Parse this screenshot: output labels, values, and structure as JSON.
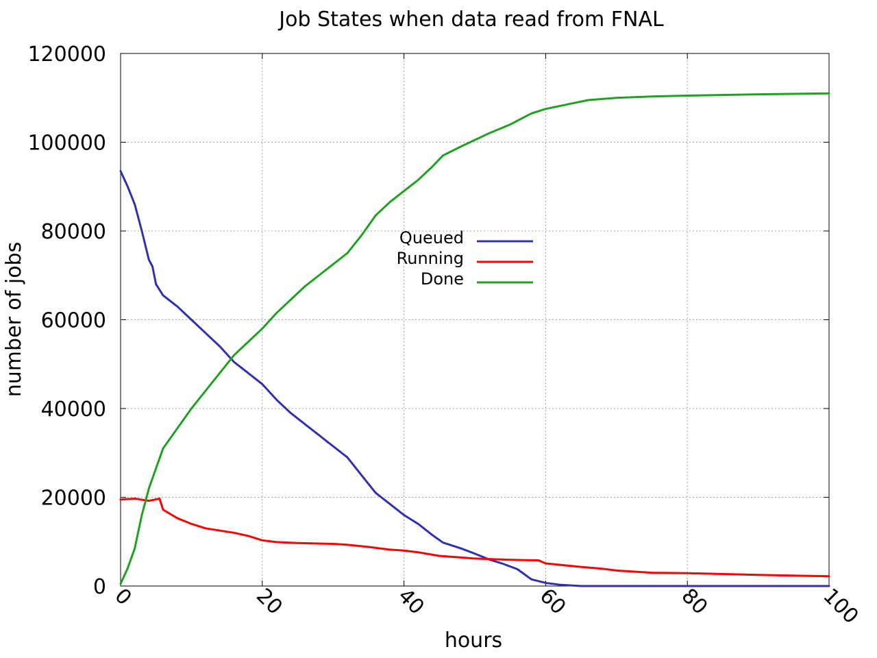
{
  "chart_data": {
    "type": "line",
    "title": "Job States when data read from FNAL",
    "xlabel": "hours",
    "ylabel": "number of jobs",
    "xlim": [
      0,
      100
    ],
    "ylim": [
      0,
      120000
    ],
    "xticks": [
      0,
      20,
      40,
      60,
      80,
      100
    ],
    "yticks": [
      0,
      20000,
      40000,
      60000,
      80000,
      100000,
      120000
    ],
    "grid": true,
    "legend_position": "center",
    "series": [
      {
        "name": "Queued",
        "color": "#2f2faf",
        "x": [
          0,
          1,
          2,
          3,
          4,
          4.5,
          5,
          6,
          8,
          10,
          12,
          14,
          16,
          18,
          20,
          22,
          24,
          26,
          28,
          30,
          32,
          34,
          36,
          38,
          40,
          42,
          44,
          45.5,
          48,
          50,
          52,
          54,
          56,
          58,
          60,
          62,
          65,
          70,
          80,
          90,
          100
        ],
        "y": [
          93500,
          90000,
          86000,
          80000,
          73500,
          72000,
          68000,
          65500,
          63000,
          60000,
          57000,
          54000,
          50500,
          48000,
          45500,
          42000,
          39000,
          36500,
          34000,
          31500,
          29000,
          25000,
          21000,
          18500,
          16000,
          14000,
          11500,
          9800,
          8500,
          7300,
          6000,
          5000,
          3800,
          1500,
          700,
          300,
          0,
          0,
          0,
          0,
          0
        ]
      },
      {
        "name": "Running",
        "color": "#ff0000",
        "x": [
          0,
          2,
          4,
          5.5,
          6,
          8,
          10,
          12,
          14,
          16,
          18,
          20,
          22,
          25,
          30,
          32,
          35,
          38,
          40,
          42,
          45,
          50,
          55,
          59,
          60,
          65,
          68,
          70,
          75,
          80,
          90,
          100
        ],
        "y": [
          19500,
          19700,
          19200,
          19700,
          17200,
          15300,
          14000,
          13000,
          12500,
          12000,
          11300,
          10300,
          9900,
          9700,
          9500,
          9300,
          8800,
          8200,
          8000,
          7600,
          6800,
          6200,
          5900,
          5800,
          5100,
          4300,
          3900,
          3500,
          3000,
          2900,
          2500,
          2200
        ]
      },
      {
        "name": "Done",
        "color": "#1fa01f",
        "x": [
          0,
          1,
          2,
          3,
          4,
          5,
          6,
          8,
          10,
          12,
          14,
          16,
          18,
          20,
          22,
          24,
          26,
          28,
          30,
          32,
          34,
          36,
          38,
          40,
          42,
          44,
          45.5,
          48,
          50,
          52,
          55,
          58,
          60,
          63,
          66,
          70,
          75,
          80,
          90,
          100
        ],
        "y": [
          500,
          4000,
          8500,
          16000,
          22000,
          26500,
          31000,
          35500,
          40000,
          44000,
          48000,
          52000,
          55000,
          58000,
          61500,
          64500,
          67500,
          70000,
          72500,
          75000,
          79000,
          83500,
          86500,
          89000,
          91500,
          94500,
          97000,
          99000,
          100500,
          102000,
          104000,
          106500,
          107500,
          108500,
          109500,
          110000,
          110300,
          110500,
          110800,
          111000
        ]
      }
    ]
  }
}
